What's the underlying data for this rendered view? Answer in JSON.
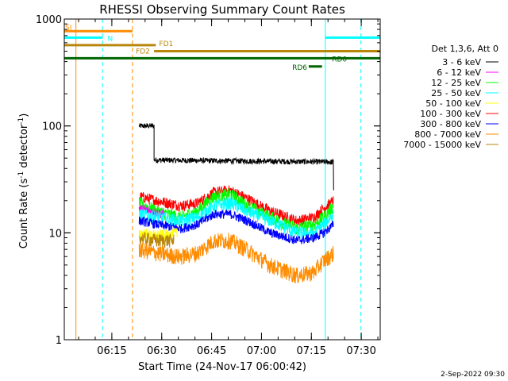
{
  "chart_data": {
    "type": "line",
    "title": "RHESSI Observing Summary Count Rates",
    "xlabel": "Start Time (24-Nov-17 06:00:42)",
    "ylabel_main": "Count Rate (s",
    "ylabel_sup1": "-1",
    "ylabel_mid": " detector",
    "ylabel_sup2": "-1",
    "ylabel_end": ")",
    "y_scale": "log",
    "ylim": [
      1,
      1000
    ],
    "xlim_minutes": [
      0,
      95
    ],
    "x_ticks": [
      {
        "minute": 14.3,
        "label": "06:15"
      },
      {
        "minute": 29.3,
        "label": "06:30"
      },
      {
        "minute": 44.3,
        "label": "06:45"
      },
      {
        "minute": 59.3,
        "label": "07:00"
      },
      {
        "minute": 74.3,
        "label": "07:15"
      },
      {
        "minute": 89.3,
        "label": "07:30"
      }
    ],
    "y_ticks": [
      {
        "value": 1,
        "label": "1"
      },
      {
        "value": 10,
        "label": "10"
      },
      {
        "value": 100,
        "label": "100"
      },
      {
        "value": 1000,
        "label": "1000"
      }
    ],
    "legend_title": "Det 1,3,6, Att 0",
    "legend_position": "right",
    "series": [
      {
        "name": "3 - 6 keV",
        "color": "#000000"
      },
      {
        "name": "6 - 12 keV",
        "color": "#ff00ff"
      },
      {
        "name": "12 - 25 keV",
        "color": "#00ff00"
      },
      {
        "name": "25 - 50 keV",
        "color": "#00ffff"
      },
      {
        "name": "50 - 100 keV",
        "color": "#ffff00"
      },
      {
        "name": "100 - 300 keV",
        "color": "#ff0000"
      },
      {
        "name": "300 - 800 keV",
        "color": "#0000ff"
      },
      {
        "name": "800 - 7000 keV",
        "color": "#ff8c00"
      },
      {
        "name": "7000 - 15000 keV",
        "color": "#b8860b"
      }
    ],
    "data_series": [
      {
        "color": "#000000",
        "segments": [
          {
            "x": [
              22.5,
              27.0
            ],
            "y": [
              100,
              100
            ]
          },
          {
            "x": [
              27.0,
              81.0
            ],
            "y": [
              48,
              46
            ]
          }
        ],
        "noise": 0.06
      },
      {
        "color": "#ff0000",
        "x": [
          22.5,
          28,
          35,
          40,
          45,
          50,
          55,
          62,
          70,
          75,
          78,
          81
        ],
        "y": [
          22,
          20,
          18,
          19,
          24,
          25,
          21,
          16,
          13,
          14,
          17,
          20
        ],
        "noise": 0.12
      },
      {
        "color": "#00ff00",
        "x": [
          22.5,
          28,
          35,
          40,
          45,
          50,
          55,
          62,
          70,
          75,
          78,
          81
        ],
        "y": [
          19,
          16,
          14,
          16,
          22,
          23,
          18,
          14,
          11,
          12,
          14,
          18
        ],
        "noise": 0.14
      },
      {
        "color": "#ff00ff",
        "x": [
          22.5,
          26,
          30
        ],
        "y": [
          17,
          16,
          15
        ],
        "noise": 0.1
      },
      {
        "color": "#00ffff",
        "x": [
          22.5,
          28,
          35,
          40,
          45,
          50,
          55,
          62,
          70,
          75,
          78,
          81
        ],
        "y": [
          15,
          14,
          13,
          14,
          18,
          19,
          16,
          13,
          10,
          10,
          12,
          15
        ],
        "noise": 0.14
      },
      {
        "color": "#0000ff",
        "x": [
          22.5,
          28,
          35,
          40,
          45,
          50,
          55,
          62,
          70,
          75,
          78,
          81
        ],
        "y": [
          13,
          12,
          11,
          12,
          15,
          15,
          13,
          10,
          8.5,
          9,
          10,
          12
        ],
        "noise": 0.1
      },
      {
        "color": "#ffff00",
        "x": [
          22.5,
          26,
          30,
          34
        ],
        "y": [
          10,
          9.5,
          9.5,
          10
        ],
        "noise": 0.12
      },
      {
        "color": "#b8860b",
        "x": [
          22.5,
          28,
          33
        ],
        "y": [
          9,
          8.5,
          8.5
        ],
        "noise": 0.15
      },
      {
        "color": "#ff8c00",
        "x": [
          22.5,
          28,
          35,
          40,
          45,
          50,
          55,
          58,
          62,
          70,
          75,
          78,
          81
        ],
        "y": [
          7,
          6.5,
          6.0,
          6.5,
          8.5,
          8.5,
          7.0,
          6.0,
          5.0,
          4.0,
          4.3,
          5.5,
          6.5
        ],
        "noise": 0.18
      }
    ],
    "flag_bars": [
      {
        "label": "SI",
        "color": "#ff8c00",
        "x": [
          0,
          20.5
        ],
        "y": 770,
        "label_x": 0,
        "label_pos": "left"
      },
      {
        "label": "N",
        "color": "#00ffff",
        "x": [
          0,
          11.5
        ],
        "y": 670,
        "label_x": 13,
        "label_pos": "right"
      },
      {
        "label": "N",
        "color": "#00ffff",
        "x": [
          78.5,
          95
        ],
        "y": 670,
        "label_x": null,
        "label_pos": "none"
      },
      {
        "label": "FD1",
        "color": "#b8860b",
        "x": [
          0,
          27.5
        ],
        "y": 570,
        "label_x": 28.5,
        "label_pos": "above"
      },
      {
        "label": "FD2",
        "color": "#b8860b",
        "x": [
          27.0,
          95
        ],
        "y": 500,
        "label_x": 21.5,
        "label_pos": "left_below"
      },
      {
        "label": "RD0",
        "color": "#006400",
        "x": [
          0,
          95
        ],
        "y": 430,
        "label_x": 80.5,
        "label_pos": "above_right"
      },
      {
        "label": "RD6",
        "color": "#006400",
        "x": [
          73.5,
          77.5
        ],
        "y": 360,
        "label_x": 72.8,
        "label_pos": "left"
      }
    ],
    "vlines": [
      {
        "x": 0.0,
        "color": "#00ffff",
        "dash": false
      },
      {
        "x": 3.5,
        "color": "#ff8c00",
        "dash": false
      },
      {
        "x": 11.5,
        "color": "#00ffff",
        "dash": true
      },
      {
        "x": 20.5,
        "color": "#ff8c00",
        "dash": true
      },
      {
        "x": 78.5,
        "color": "#00ffff",
        "dash": false
      },
      {
        "x": 89.2,
        "color": "#00ffff",
        "dash": true
      }
    ]
  },
  "footer": {
    "timestamp": "2-Sep-2022 09:30"
  },
  "colors": {
    "background": "#ffffff",
    "axes": "#000000"
  }
}
